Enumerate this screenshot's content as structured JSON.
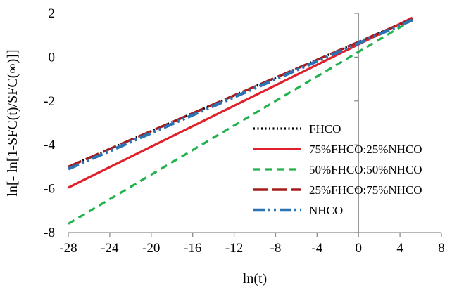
{
  "chart_data": {
    "type": "line",
    "xlabel": "ln(t)",
    "ylabel": "ln[- ln[1-SFC(t)/SFC(∞)]]",
    "xlim": [
      -28,
      8
    ],
    "ylim": [
      -8,
      2
    ],
    "xticks": [
      -28,
      -24,
      -20,
      -16,
      -12,
      -8,
      -4,
      0,
      4,
      8
    ],
    "yticks": [
      -8,
      -6,
      -4,
      -2,
      0,
      2
    ],
    "x_tick_labels": [
      "-28",
      "-24",
      "-20",
      "-16",
      "-12",
      "-8",
      "-4",
      "0",
      "4",
      "8"
    ],
    "y_tick_labels": [
      "-8",
      "-6",
      "-4",
      "-2",
      "0",
      "2"
    ],
    "grid": false,
    "legend_position": "bottom-right",
    "series": [
      {
        "name": "FHCO",
        "x": [
          -28,
          5.2
        ],
        "y": [
          -5.0,
          1.75
        ],
        "color": "#000000",
        "style": "dotted"
      },
      {
        "name": "75%FHCO:25%NHCO",
        "x": [
          -28,
          5.2
        ],
        "y": [
          -5.95,
          1.8
        ],
        "color": "#e0202a",
        "style": "solid"
      },
      {
        "name": "50%FHCO:50%NHCO",
        "x": [
          -28,
          5.2
        ],
        "y": [
          -7.6,
          1.7
        ],
        "color": "#22b24c",
        "style": "dashed"
      },
      {
        "name": "25%FHCO:75%NHCO",
        "x": [
          -28,
          5.2
        ],
        "y": [
          -5.0,
          1.75
        ],
        "color": "#a61c1c",
        "style": "longdash"
      },
      {
        "name": "NHCO",
        "x": [
          -28,
          5.2
        ],
        "y": [
          -5.1,
          1.7
        ],
        "color": "#2a74b6",
        "style": "dashdot"
      }
    ]
  }
}
